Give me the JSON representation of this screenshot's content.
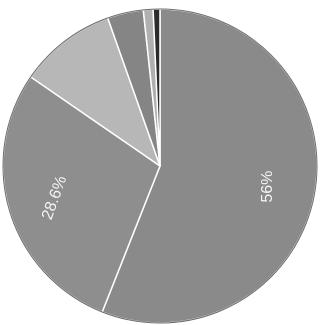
{
  "chart_data": {
    "type": "pie",
    "start_angle_deg": 0,
    "direction": "clockwise",
    "legend": "none",
    "slices": [
      {
        "value": 56,
        "label": "56%",
        "color": "#8a8a8a",
        "label_rotation": -90
      },
      {
        "value": 28.6,
        "label": "28.6%",
        "color": "#8e8e8e",
        "label_rotation": -70
      },
      {
        "value": 10.0,
        "label": "",
        "color": "#b7b7b7"
      },
      {
        "value": 3.7,
        "label": "",
        "color": "#858585"
      },
      {
        "value": 1.0,
        "label": "",
        "color": "#b0b0b0"
      },
      {
        "value": 0.7,
        "label": "",
        "color": "#2b2b2b"
      }
    ]
  }
}
